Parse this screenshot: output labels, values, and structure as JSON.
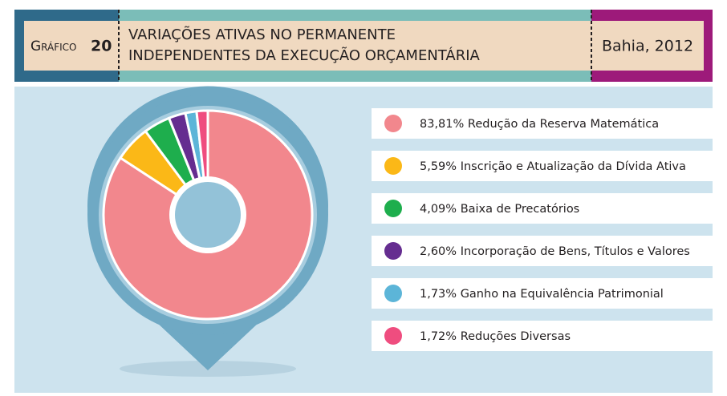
{
  "chart_data": {
    "type": "pie",
    "chart_label": "Gráfico",
    "chart_number": "20",
    "title": [
      "VARIAÇÕES ATIVAS NO PERMANENTE",
      "INDEPENDENTES DA EXECUÇÃO ORÇAMENTÁRIA"
    ],
    "location": "Bahia, 2012",
    "categories": [
      "Redução da Reserva Matemática",
      "Inscrição e Atualização da Dívida Ativa",
      "Baixa de Precatórios",
      "Incorporação de Bens, Títulos e Valores",
      "Ganho na Equivalência Patrimonial",
      "Reduções Diversas"
    ],
    "values": [
      83.81,
      5.59,
      4.09,
      2.6,
      1.73,
      1.72
    ],
    "value_labels": [
      "83,81%",
      "5,59%",
      "4,09%",
      "2,60%",
      "1,73%",
      "1,72%"
    ],
    "colors": [
      "#f2878d",
      "#fbb817",
      "#1eae4d",
      "#652d90",
      "#5cb5d8",
      "#ef4d7f"
    ]
  }
}
